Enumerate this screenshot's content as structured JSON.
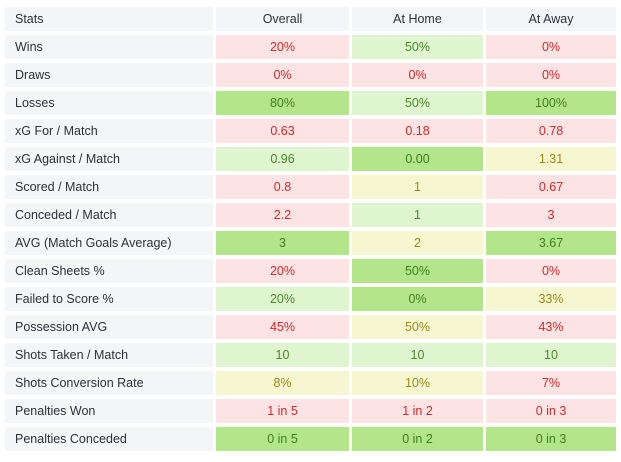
{
  "header": {
    "stats": "Stats",
    "overall": "Overall",
    "home": "At Home",
    "away": "At Away"
  },
  "colors": {
    "red_bg": "#fde3e3",
    "light_green_bg": "#dff5cf",
    "green_bg": "#b3e68b",
    "yellow_bg": "#f6f7d1"
  },
  "rows": [
    {
      "label": "Wins",
      "overall": "20%",
      "home": "50%",
      "away": "0%"
    },
    {
      "label": "Draws",
      "overall": "0%",
      "home": "0%",
      "away": "0%"
    },
    {
      "label": "Losses",
      "overall": "80%",
      "home": "50%",
      "away": "100%"
    },
    {
      "label": "xG For / Match",
      "overall": "0.63",
      "home": "0.18",
      "away": "0.78"
    },
    {
      "label": "xG Against / Match",
      "overall": "0.96",
      "home": "0.00",
      "away": "1.31"
    },
    {
      "label": "Scored / Match",
      "overall": "0.8",
      "home": "1",
      "away": "0.67"
    },
    {
      "label": "Conceded / Match",
      "overall": "2.2",
      "home": "1",
      "away": "3"
    },
    {
      "label": "AVG (Match Goals Average)",
      "overall": "3",
      "home": "2",
      "away": "3.67"
    },
    {
      "label": "Clean Sheets %",
      "overall": "20%",
      "home": "50%",
      "away": "0%"
    },
    {
      "label": "Failed to Score %",
      "overall": "20%",
      "home": "0%",
      "away": "33%"
    },
    {
      "label": "Possession AVG",
      "overall": "45%",
      "home": "50%",
      "away": "43%"
    },
    {
      "label": "Shots Taken / Match",
      "overall": "10",
      "home": "10",
      "away": "10"
    },
    {
      "label": "Shots Conversion Rate",
      "overall": "8%",
      "home": "10%",
      "away": "7%"
    },
    {
      "label": "Penalties Won",
      "overall": "1 in 5",
      "home": "1 in 2",
      "away": "0 in 3"
    },
    {
      "label": "Penalties Conceded",
      "overall": "0 in 5",
      "home": "0 in 2",
      "away": "0 in 3"
    }
  ]
}
